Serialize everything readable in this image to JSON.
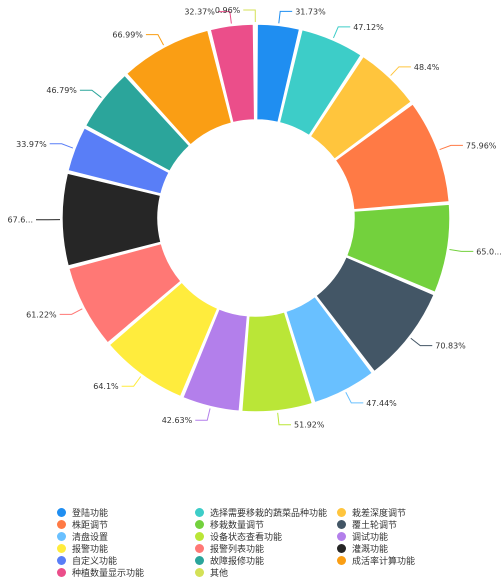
{
  "chart_data": {
    "type": "pie",
    "variant": "donut",
    "legend_position": "bottom",
    "slices": [
      {
        "name": "登陆功能",
        "label": "31.73%",
        "value": 31.73,
        "color": "#1f8ef1"
      },
      {
        "name": "选择需要移栽的蔬菜品种功能",
        "label": "47.12%",
        "value": 47.12,
        "color": "#3dcdc8"
      },
      {
        "name": "栽差深度调节",
        "label": "48.4%",
        "value": 48.4,
        "color": "#ffc53d"
      },
      {
        "name": "株距调节",
        "label": "75.96%",
        "value": 75.96,
        "color": "#ff7a45"
      },
      {
        "name": "移栽数量调节",
        "label": "65.0...",
        "value": 65.0,
        "color": "#73d13d"
      },
      {
        "name": "覆土轮调节",
        "label": "70.83%",
        "value": 70.83,
        "color": "#435666"
      },
      {
        "name": "清盘设置",
        "label": "47.44%",
        "value": 47.44,
        "color": "#69c0ff"
      },
      {
        "name": "设备状态查看功能",
        "label": "51.92%",
        "value": 51.92,
        "color": "#bae637"
      },
      {
        "name": "调试功能",
        "label": "42.63%",
        "value": 42.63,
        "color": "#b37feb"
      },
      {
        "name": "报警功能",
        "label": "64.1%",
        "value": 64.1,
        "color": "#ffec3d"
      },
      {
        "name": "报警列表功能",
        "label": "61.22%",
        "value": 61.22,
        "color": "#ff7875"
      },
      {
        "name": "灌溉功能",
        "label": "67.6...",
        "value": 67.6,
        "color": "#262626"
      },
      {
        "name": "自定义功能",
        "label": "33.97%",
        "value": 33.97,
        "color": "#597ef7"
      },
      {
        "name": "故障报修功能",
        "label": "46.79%",
        "value": 46.79,
        "color": "#2ba59b"
      },
      {
        "name": "成活率计算功能",
        "label": "66.99%",
        "value": 66.99,
        "color": "#fa9e14"
      },
      {
        "name": "种植数量显示功能",
        "label": "32.37%",
        "value": 32.37,
        "color": "#eb4e8a"
      },
      {
        "name": "其他",
        "label": "0.96%",
        "value": 0.96,
        "color": "#d4e157"
      }
    ]
  }
}
